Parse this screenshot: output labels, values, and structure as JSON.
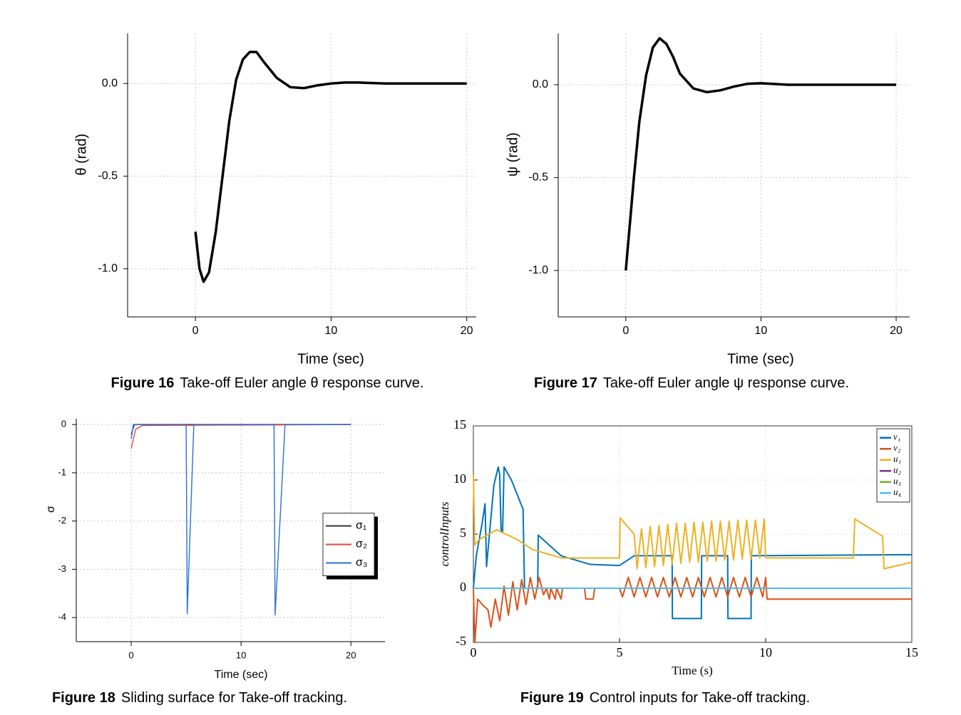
{
  "chart_data": [
    {
      "type": "line",
      "figure_label": "Figure 16",
      "caption": "Take-off Euler angle θ response curve.",
      "xlabel": "Time (sec)",
      "ylabel": "θ (rad)",
      "grid": true,
      "xlim": [
        -5,
        20.7
      ],
      "xticks": [
        0,
        10,
        20
      ],
      "ylim": [
        -1.26,
        0.27
      ],
      "yticks": [
        {
          "value": 0,
          "label": "0.0"
        },
        {
          "value": -0.5,
          "label": "-0.5"
        },
        {
          "value": -1,
          "label": "-1.0"
        }
      ],
      "series": [
        {
          "color": "#000000",
          "x": [
            0,
            0.3,
            0.6,
            1,
            1.5,
            2,
            2.5,
            3,
            3.5,
            4,
            4.5,
            5,
            6,
            7,
            8,
            9,
            10,
            11,
            12,
            14,
            20
          ],
          "values": [
            -0.8,
            -1.0,
            -1.07,
            -1.02,
            -0.8,
            -0.5,
            -0.2,
            0.02,
            0.13,
            0.17,
            0.17,
            0.12,
            0.03,
            -0.02,
            -0.025,
            -0.01,
            0,
            0.005,
            0.005,
            0,
            0
          ]
        }
      ]
    },
    {
      "type": "line",
      "figure_label": "Figure 17",
      "caption": "Take-off Euler angle ψ response curve.",
      "xlabel": "Time (sec)",
      "ylabel": "ψ (rad)",
      "grid": true,
      "xlim": [
        -5,
        21
      ],
      "xticks": [
        0,
        10,
        20
      ],
      "ylim": [
        -1.25,
        0.276
      ],
      "yticks": [
        {
          "value": 0,
          "label": "0.0"
        },
        {
          "value": -0.5,
          "label": "-0.5"
        },
        {
          "value": -1,
          "label": "-1.0"
        }
      ],
      "series": [
        {
          "color": "#000000",
          "x": [
            0,
            0.3,
            0.6,
            1,
            1.5,
            2,
            2.5,
            3,
            3.5,
            4,
            5,
            6,
            7,
            8,
            9,
            10,
            12,
            20
          ],
          "values": [
            -1.0,
            -0.75,
            -0.5,
            -0.2,
            0.05,
            0.2,
            0.25,
            0.22,
            0.15,
            0.06,
            -0.02,
            -0.04,
            -0.03,
            -0.01,
            0.005,
            0.008,
            0,
            0
          ]
        }
      ]
    },
    {
      "type": "line",
      "figure_label": "Figure 18",
      "caption": "Sliding surface for Take-off tracking.",
      "xlabel": "Time (sec)",
      "ylabel": "σ",
      "grid": true,
      "legend": "right",
      "xlim": [
        -5,
        23.1
      ],
      "xticks": [
        0,
        10,
        20
      ],
      "ylim": [
        -4.5,
        0.12
      ],
      "yticks": [
        0,
        -1,
        -2,
        -3,
        -4
      ],
      "series": [
        {
          "name": "σ₁",
          "color": "#333333",
          "x": [
            0,
            0.3,
            20
          ],
          "values": [
            -0.2,
            0,
            0
          ]
        },
        {
          "name": "σ₂",
          "color": "#e8423a",
          "x": [
            0,
            0.4,
            1,
            20
          ],
          "values": [
            -0.5,
            -0.1,
            -0.02,
            0
          ]
        },
        {
          "name": "σ₃",
          "color": "#2a6fd6",
          "x": [
            0,
            0.2,
            5,
            5.1,
            5.7,
            13,
            13.1,
            14,
            20
          ],
          "values": [
            -0.3,
            0,
            0,
            -3.92,
            0,
            0,
            -3.95,
            0,
            0
          ]
        }
      ]
    },
    {
      "type": "line",
      "figure_label": "Figure 19",
      "caption": "Control inputs for Take-off tracking.",
      "xlabel": "Time (s)",
      "ylabel": "controlInputs",
      "grid": true,
      "legend": "upper right",
      "xlim": [
        0,
        15
      ],
      "xticks": [
        0,
        5,
        10,
        15
      ],
      "ylim": [
        -5,
        15
      ],
      "yticks": [
        -5,
        0,
        5,
        10,
        15
      ],
      "series": [
        {
          "name": "v₁",
          "color": "#0072bd",
          "x": [
            0,
            0.1,
            0.3,
            0.4,
            0.45,
            0.55,
            0.7,
            0.85,
            0.9,
            0.95,
            1.0,
            1.05,
            1.3,
            1.7,
            1.75,
            2.2,
            2.22,
            3,
            4,
            5,
            5.5,
            6.8,
            6.81,
            7.8,
            7.81,
            8.7,
            8.71,
            9.5,
            9.51,
            15
          ],
          "values": [
            0,
            3,
            6,
            7.8,
            2,
            5,
            9.5,
            11.2,
            10.5,
            5.2,
            5.2,
            11.2,
            10,
            7.3,
            0,
            0,
            4.9,
            3,
            2.2,
            2.1,
            3,
            3,
            -2.8,
            -2.8,
            3,
            3,
            -2.8,
            -2.8,
            3,
            3.1
          ]
        },
        {
          "name": "v₂",
          "color": "#d95319",
          "x": [
            0,
            0.05,
            0.15,
            0.3,
            0.5,
            0.6,
            0.75,
            0.9,
            1.05,
            1.2,
            1.35,
            1.5,
            1.65,
            1.8,
            1.95,
            2.1,
            2.25,
            2.4,
            2.5,
            2.6,
            2.65,
            2.8,
            2.85,
            3.0,
            3.05,
            3.8,
            3.85,
            4.1,
            4.15,
            5.0,
            5.1,
            5.3,
            5.5,
            5.7,
            5.9,
            6.1,
            6.3,
            6.5,
            6.7,
            6.9,
            7.1,
            7.3,
            7.5,
            7.7,
            7.9,
            8.1,
            8.3,
            8.5,
            8.7,
            8.9,
            9.1,
            9.3,
            9.5,
            9.7,
            9.9,
            10,
            10.05,
            15
          ],
          "values": [
            0,
            -5,
            -1,
            -1.5,
            -2,
            -3.6,
            -1.0,
            -3.0,
            0.2,
            -2.5,
            0.6,
            -2.0,
            0.8,
            -1.5,
            1.0,
            -1.0,
            1.0,
            -0.6,
            0,
            -1,
            0,
            -1,
            0,
            -1,
            0,
            0,
            -1,
            -1,
            0,
            0,
            -0.8,
            1,
            -0.8,
            1,
            -0.8,
            1,
            -0.8,
            1,
            -0.8,
            1,
            -0.8,
            1,
            -0.8,
            1,
            -0.8,
            1,
            -0.8,
            1,
            -0.8,
            1,
            -0.8,
            1,
            -0.8,
            1,
            -0.8,
            1,
            -1,
            -1
          ]
        },
        {
          "name": "u₁",
          "color": "#edb120",
          "x": [
            0,
            0.05,
            0.2,
            0.8,
            1.5,
            2,
            3,
            5,
            5.02,
            5.5,
            5.6,
            5.75,
            5.9,
            6.05,
            6.2,
            6.35,
            6.5,
            6.65,
            6.8,
            6.95,
            7.1,
            7.25,
            7.4,
            7.55,
            7.7,
            7.85,
            8.0,
            8.15,
            8.3,
            8.45,
            8.6,
            8.75,
            8.9,
            9.05,
            9.2,
            9.35,
            9.5,
            9.65,
            9.8,
            9.95,
            10,
            13,
            13.05,
            14,
            14.05,
            15
          ],
          "values": [
            10.5,
            4,
            4.5,
            5.4,
            4.5,
            3.6,
            2.8,
            2.8,
            6.5,
            5.0,
            1.8,
            5.5,
            1.9,
            5.7,
            2.0,
            5.8,
            2.1,
            5.9,
            2.2,
            6.0,
            2.3,
            6.0,
            2.4,
            6.1,
            2.4,
            6.1,
            2.5,
            6.2,
            2.5,
            6.2,
            2.6,
            6.2,
            2.6,
            6.3,
            2.7,
            6.3,
            2.7,
            6.3,
            2.8,
            6.4,
            2.8,
            2.8,
            6.4,
            4.8,
            1.8,
            2.4
          ]
        },
        {
          "name": "u₂",
          "color": "#7e2f8e",
          "x": [
            0,
            15
          ],
          "values": [
            0,
            0
          ]
        },
        {
          "name": "u₃",
          "color": "#77ac30",
          "x": [
            0,
            15
          ],
          "values": [
            0,
            0
          ]
        },
        {
          "name": "u₄",
          "color": "#4dbeee",
          "x": [
            0,
            15
          ],
          "values": [
            0,
            0
          ]
        }
      ]
    }
  ]
}
